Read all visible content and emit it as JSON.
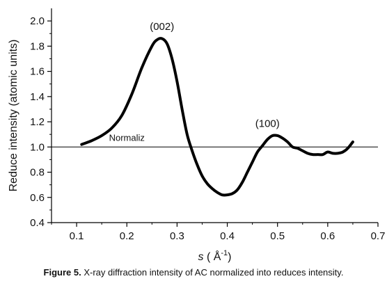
{
  "caption": {
    "label": "Figure 5.",
    "text": " X-ray diffraction intensity of AC normalized into reduces intensity."
  },
  "chart_data": {
    "type": "line",
    "title": "",
    "xlabel_prefix": "s",
    "xlabel_open": " ( Å",
    "xlabel_sup": "-1",
    "xlabel_close": ")",
    "ylabel": "Reduce intensity (atomic units)",
    "xlim": [
      0.05,
      0.7
    ],
    "ylim": [
      0.4,
      2.1
    ],
    "xticks": [
      "0.1",
      "0.2",
      "0.3",
      "0.4",
      "0.5",
      "0.6",
      "0.7"
    ],
    "yticks": [
      "0.4",
      "0.6",
      "0.8",
      "1.0",
      "1.2",
      "1.4",
      "1.6",
      "1.8",
      "2.0"
    ],
    "grid": false,
    "series": [
      {
        "x": [
          0.11,
          0.13,
          0.15,
          0.17,
          0.19,
          0.21,
          0.23,
          0.25,
          0.26,
          0.27,
          0.28,
          0.29,
          0.3,
          0.31,
          0.32,
          0.33,
          0.34,
          0.35,
          0.36,
          0.37,
          0.38,
          0.39,
          0.4,
          0.41,
          0.42,
          0.43,
          0.44,
          0.45,
          0.46,
          0.47,
          0.48,
          0.49,
          0.5,
          0.51,
          0.52,
          0.53,
          0.54,
          0.55,
          0.56,
          0.57,
          0.58,
          0.59,
          0.6,
          0.61,
          0.62,
          0.63,
          0.64,
          0.65
        ],
        "y": [
          1.02,
          1.05,
          1.09,
          1.15,
          1.25,
          1.42,
          1.63,
          1.8,
          1.85,
          1.86,
          1.82,
          1.7,
          1.52,
          1.3,
          1.1,
          0.97,
          0.86,
          0.77,
          0.71,
          0.67,
          0.64,
          0.62,
          0.62,
          0.63,
          0.66,
          0.72,
          0.8,
          0.88,
          0.96,
          1.01,
          1.06,
          1.09,
          1.09,
          1.07,
          1.04,
          1.0,
          0.99,
          0.97,
          0.95,
          0.94,
          0.94,
          0.94,
          0.96,
          0.95,
          0.95,
          0.96,
          0.99,
          1.04
        ],
        "color": "#000000"
      }
    ],
    "reference_line": {
      "y": 1.0,
      "label": "Normaliz",
      "label_x": 0.2
    },
    "annotations": [
      {
        "text": "(002)",
        "x": 0.27,
        "y": 1.93
      },
      {
        "text": "(100)",
        "x": 0.48,
        "y": 1.16
      }
    ]
  }
}
